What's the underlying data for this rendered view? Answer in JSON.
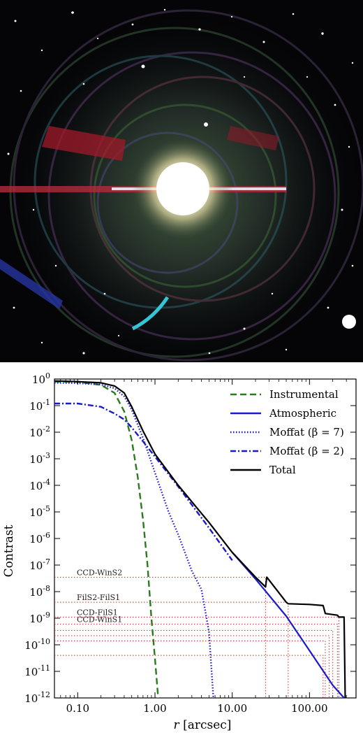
{
  "chart_data": {
    "type": "line",
    "xlabel": "r [arcsec]",
    "ylabel": "Contrast",
    "xscale": "log",
    "yscale": "log",
    "xlim": [
      0.05,
      400
    ],
    "ylim": [
      1e-12,
      1
    ],
    "xticks": [
      0.1,
      1,
      10,
      100
    ],
    "xtick_labels": [
      "0.10",
      "1.00",
      "10.00",
      "100.00"
    ],
    "yticks": [
      1,
      0.1,
      0.01,
      0.001,
      0.0001,
      1e-05,
      1e-06,
      1e-07,
      1e-08,
      1e-09,
      1e-10,
      1e-11,
      1e-12
    ],
    "ytick_labels": [
      {
        "base": "10",
        "exp": "0"
      },
      {
        "base": "10",
        "exp": "-1"
      },
      {
        "base": "10",
        "exp": "-2"
      },
      {
        "base": "10",
        "exp": "-3"
      },
      {
        "base": "10",
        "exp": "-4"
      },
      {
        "base": "10",
        "exp": "-5"
      },
      {
        "base": "10",
        "exp": "-6"
      },
      {
        "base": "10",
        "exp": "-7"
      },
      {
        "base": "10",
        "exp": "-8"
      },
      {
        "base": "10",
        "exp": "-9"
      },
      {
        "base": "10",
        "exp": "-10"
      },
      {
        "base": "10",
        "exp": "-11"
      },
      {
        "base": "10",
        "exp": "-12"
      }
    ],
    "legend_position": "top-right",
    "series": [
      {
        "name": "Instrumental",
        "color": "#2a7a1e",
        "style": "dashed",
        "x": [
          0.05,
          0.1,
          0.2,
          0.3,
          0.4,
          0.5,
          0.6,
          0.7,
          0.8,
          0.9,
          1.0,
          1.1
        ],
        "y": [
          0.8,
          0.78,
          0.6,
          0.3,
          0.06,
          0.005,
          0.0002,
          5e-06,
          1e-07,
          1e-09,
          3e-11,
          1e-12
        ]
      },
      {
        "name": "Atmospheric",
        "color": "#1a1acd",
        "style": "solid",
        "x": [
          10,
          20,
          50,
          100,
          200,
          280
        ],
        "y": [
          3e-07,
          3e-08,
          1.2e-09,
          6e-11,
          3e-12,
          1e-12
        ]
      },
      {
        "name": "Moffat (β = 7)",
        "color": "#1a1acd",
        "style": "dotted",
        "x": [
          0.05,
          0.1,
          0.2,
          0.3,
          0.4,
          0.5,
          0.7,
          1.0,
          1.5,
          2.0,
          3.0,
          4.0,
          5.0,
          5.7
        ],
        "y": [
          0.72,
          0.7,
          0.62,
          0.45,
          0.22,
          0.07,
          0.006,
          0.0003,
          1e-05,
          1.4e-06,
          6e-08,
          1.2e-08,
          3e-10,
          1e-12
        ]
      },
      {
        "name": "Moffat (β = 2)",
        "color": "#1a1acd",
        "style": "dashdot",
        "x": [
          0.05,
          0.1,
          0.2,
          0.3,
          0.4,
          0.5,
          0.7,
          1.0,
          2.0,
          5.0,
          10.0
        ],
        "y": [
          0.12,
          0.12,
          0.09,
          0.05,
          0.03,
          0.015,
          0.0045,
          0.0012,
          9e-05,
          2.5e-06,
          1.5e-07
        ]
      },
      {
        "name": "Total",
        "color": "#000000",
        "style": "solid",
        "x": [
          0.05,
          0.1,
          0.2,
          0.3,
          0.4,
          0.5,
          0.7,
          1.0,
          2.0,
          5.0,
          10.0,
          20.0,
          27.0,
          28.0,
          50.0,
          53.0,
          100.0,
          150.0,
          160.0,
          230.0,
          240.0,
          280.0,
          290.0
        ],
        "y": [
          0.85,
          0.8,
          0.72,
          0.55,
          0.3,
          0.09,
          0.011,
          0.0015,
          0.0001,
          4e-06,
          3e-07,
          3.5e-08,
          1.5e-08,
          3.5e-08,
          4e-09,
          3.5e-09,
          3.3e-09,
          3e-09,
          1.5e-09,
          1.3e-09,
          1.1e-09,
          1.1e-09,
          1e-12
        ]
      }
    ],
    "reference_lines": {
      "color": "#d62728",
      "style": "dotted",
      "levels": [
        {
          "y": 3.5e-08,
          "x_end": 27,
          "label": "CCD-WinS2"
        },
        {
          "y": 4e-09,
          "x_end": 53,
          "label": "FilS2-FilS1"
        },
        {
          "y": 1.1e-09,
          "x_end": 240,
          "label": "CCD-FilS1"
        },
        {
          "y": 6e-10,
          "x_end": 230,
          "label": "CCD-WinS1"
        },
        {
          "y": 3.5e-10,
          "x_end": 200,
          "label": ""
        },
        {
          "y": 2.2e-10,
          "x_end": 180,
          "label": ""
        },
        {
          "y": 1.4e-10,
          "x_end": 160,
          "label": ""
        },
        {
          "y": 4e-11,
          "x_end": 150,
          "label": ""
        }
      ]
    }
  }
}
